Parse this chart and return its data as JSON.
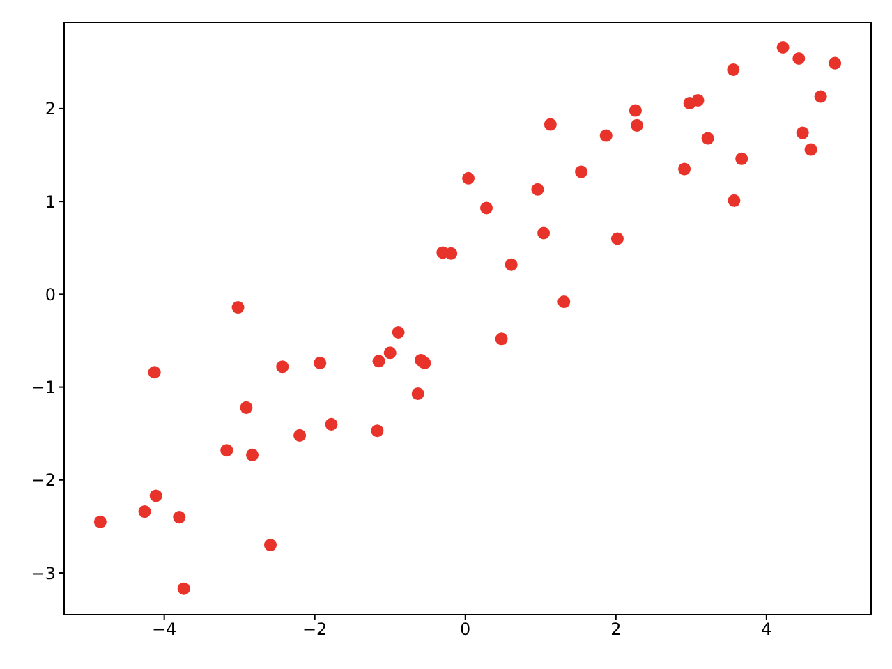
{
  "chart_data": {
    "type": "scatter",
    "marker": "circle",
    "xlim": [
      -5.33,
      5.39
    ],
    "ylim": [
      -3.45,
      2.93
    ],
    "xticks": [
      -4,
      -2,
      0,
      2,
      4
    ],
    "yticks": [
      -3,
      -2,
      -1,
      0,
      1,
      2
    ],
    "series": [
      {
        "color": "#e8332a",
        "x": [
          -4.85,
          -4.26,
          -4.13,
          -4.11,
          -3.8,
          -3.74,
          -3.02,
          -3.17,
          -2.91,
          -2.83,
          -2.43,
          -2.59,
          -2.2,
          -1.93,
          -1.78,
          -1.17,
          -1.15,
          -1.0,
          -0.89,
          -0.63,
          -0.59,
          -0.54,
          -0.3,
          -0.19,
          0.04,
          0.28,
          0.48,
          0.61,
          0.96,
          1.04,
          1.13,
          1.31,
          1.54,
          1.87,
          2.02,
          2.26,
          2.28,
          2.91,
          2.98,
          3.09,
          3.22,
          3.56,
          3.57,
          3.67,
          4.22,
          4.43,
          4.48,
          4.59,
          4.72,
          4.91
        ],
        "values": [
          -2.45,
          -2.34,
          -0.84,
          -2.17,
          -2.4,
          -3.17,
          -0.14,
          -1.68,
          -1.22,
          -1.73,
          -0.78,
          -2.7,
          -1.52,
          -0.74,
          -1.4,
          -1.47,
          -0.72,
          -0.63,
          -0.41,
          -1.07,
          -0.71,
          -0.74,
          0.45,
          0.44,
          1.25,
          0.93,
          -0.48,
          0.32,
          1.13,
          0.66,
          1.83,
          -0.08,
          1.32,
          1.71,
          0.6,
          1.98,
          1.82,
          1.35,
          2.06,
          2.09,
          1.68,
          2.42,
          1.01,
          1.46,
          2.66,
          2.54,
          1.74,
          1.56,
          2.13,
          2.49
        ]
      }
    ]
  }
}
